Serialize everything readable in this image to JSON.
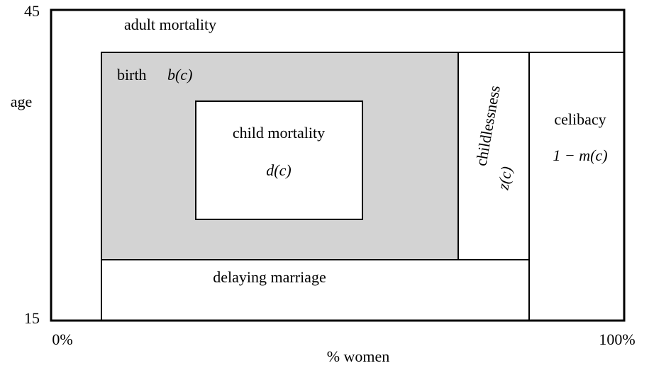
{
  "axes": {
    "y_label": "age",
    "y_top": "45",
    "y_bottom": "15",
    "x_left": "0%",
    "x_right": "100%",
    "x_label": "% women"
  },
  "regions": {
    "adult_mortality": {
      "label": "adult mortality"
    },
    "birth": {
      "label": "birth",
      "formula": "b(c)"
    },
    "child_mortality": {
      "label": "child mortality",
      "formula": "d(c)"
    },
    "childlessness": {
      "label": "childlessness",
      "formula": "z(c)"
    },
    "celibacy": {
      "label": "celibacy",
      "formula": "1 − m(c)"
    },
    "delaying_marriage": {
      "label": "delaying marriage"
    }
  }
}
